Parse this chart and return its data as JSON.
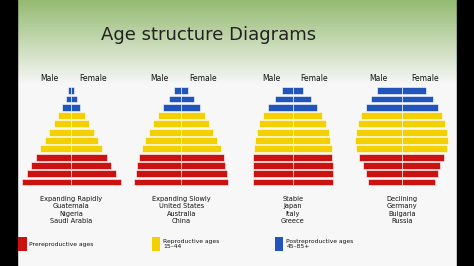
{
  "title": "Age structure Diagrams",
  "bg_green": [
    0.58,
    0.73,
    0.44
  ],
  "bg_white": [
    0.97,
    0.97,
    0.97
  ],
  "bg_split": 0.68,
  "pyramids": [
    {
      "label": "Expanding Rapidly\nGuatemala\nNigeria\nSaudi Arabia",
      "male_bars": [
        10.0,
        9.0,
        8.1,
        7.2,
        6.3,
        5.4,
        4.5,
        3.6,
        2.7,
        1.8,
        1.1,
        0.6
      ],
      "female_bars": [
        10.0,
        9.0,
        8.1,
        7.2,
        6.3,
        5.4,
        4.5,
        3.6,
        2.7,
        1.8,
        1.1,
        0.6
      ],
      "bar_colors": [
        "red",
        "red",
        "red",
        "red",
        "yellow",
        "yellow",
        "yellow",
        "yellow",
        "yellow",
        "blue",
        "blue",
        "blue"
      ]
    },
    {
      "label": "Expanding Slowly\nUnited States\nAustralia\nChina",
      "male_bars": [
        9.5,
        9.2,
        8.9,
        8.6,
        8.0,
        7.3,
        6.5,
        5.7,
        4.8,
        3.7,
        2.5,
        1.4
      ],
      "female_bars": [
        9.5,
        9.2,
        8.9,
        8.6,
        8.0,
        7.3,
        6.5,
        5.7,
        4.8,
        3.7,
        2.5,
        1.4
      ],
      "bar_colors": [
        "red",
        "red",
        "red",
        "red",
        "yellow",
        "yellow",
        "yellow",
        "yellow",
        "yellow",
        "blue",
        "blue",
        "blue"
      ]
    },
    {
      "label": "Stable\nJapan\nItaly\nGreece",
      "male_bars": [
        8.5,
        8.5,
        8.5,
        8.4,
        8.3,
        8.0,
        7.6,
        7.1,
        6.3,
        5.2,
        3.8,
        2.2
      ],
      "female_bars": [
        8.5,
        8.5,
        8.5,
        8.4,
        8.3,
        8.0,
        7.6,
        7.1,
        6.3,
        5.2,
        3.8,
        2.2
      ],
      "bar_colors": [
        "red",
        "red",
        "red",
        "red",
        "yellow",
        "yellow",
        "yellow",
        "yellow",
        "yellow",
        "blue",
        "blue",
        "blue"
      ]
    },
    {
      "label": "Declining\nGermany\nBulgaria\nRussia",
      "male_bars": [
        6.5,
        7.0,
        7.5,
        8.2,
        8.8,
        9.0,
        8.8,
        8.4,
        7.8,
        7.0,
        6.0,
        4.8
      ],
      "female_bars": [
        6.5,
        7.0,
        7.5,
        8.2,
        8.8,
        9.0,
        8.8,
        8.4,
        7.8,
        7.0,
        6.0,
        4.8
      ],
      "bar_colors": [
        "red",
        "red",
        "red",
        "red",
        "yellow",
        "yellow",
        "yellow",
        "yellow",
        "yellow",
        "blue",
        "blue",
        "blue"
      ]
    }
  ],
  "bar_color_red": "#cc1111",
  "bar_color_yellow": "#f5d000",
  "bar_color_blue": "#2255bb",
  "legend_labels": [
    "Prereproductive ages",
    "Reproductive ages\n15–44",
    "Postreproductive ages\n45–85+"
  ],
  "legend_colors": [
    "#cc1111",
    "#f5d000",
    "#2255bb"
  ]
}
